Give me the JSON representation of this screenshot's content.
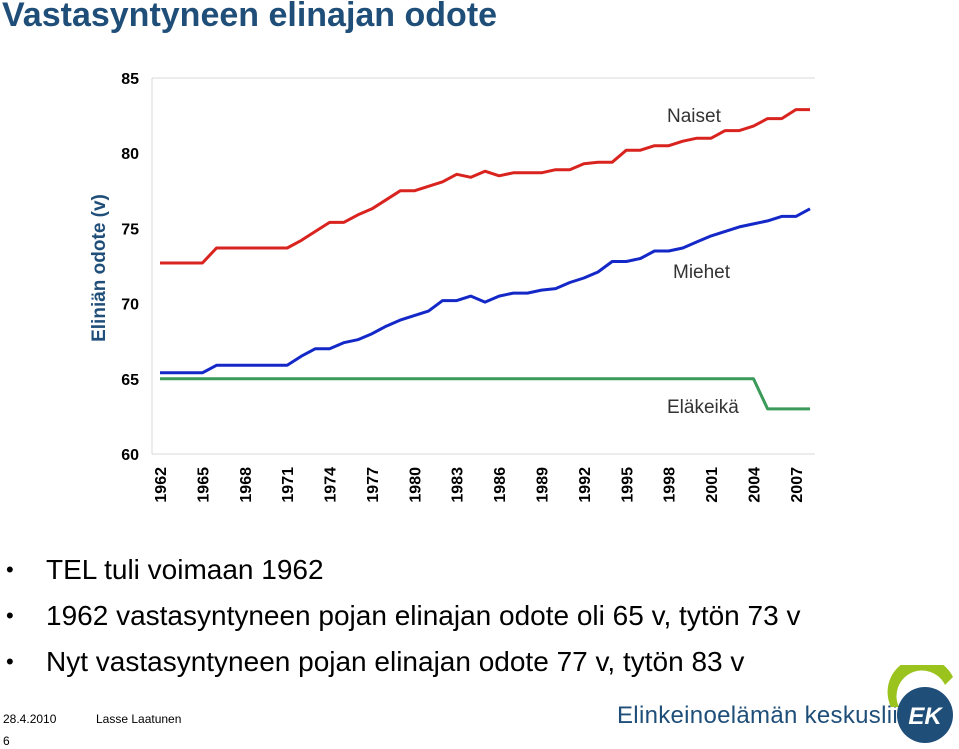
{
  "slide": {
    "title": "Vastasyntyneen elinajan odote",
    "bullets": [
      "TEL tuli voimaan 1962",
      "1962 vastasyntyneen pojan elinajan odote oli 65 v, tytön 73 v",
      "Nyt vastasyntyneen pojan elinajan odote 77 v, tytön 83 v"
    ],
    "bullet_symbol": "•"
  },
  "footer": {
    "date": "28.4.2010",
    "author": "Lasse Laatunen",
    "page_number": "6",
    "organization": "Elinkeinoelämän keskusliitto",
    "logo_text": "EK"
  },
  "colors": {
    "title": "#1f4e79",
    "women": "#d9231f",
    "men": "#1428c8",
    "retirement_age": "#3a9a5a",
    "logo_green": "#9bc31e",
    "logo_blue": "#1f4e79"
  },
  "chart_data": {
    "type": "line",
    "title": "",
    "xlabel": "",
    "ylabel": "Eliniän odote (v)",
    "ylim": [
      60,
      85
    ],
    "yticks": [
      60,
      65,
      70,
      75,
      80,
      85
    ],
    "xticks": [
      "1962",
      "1965",
      "1968",
      "1971",
      "1974",
      "1977",
      "1980",
      "1983",
      "1986",
      "1989",
      "1992",
      "1995",
      "1998",
      "2001",
      "2004",
      "2007"
    ],
    "grid": false,
    "x": [
      1962,
      1963,
      1964,
      1965,
      1966,
      1967,
      1968,
      1969,
      1970,
      1971,
      1972,
      1973,
      1974,
      1975,
      1976,
      1977,
      1978,
      1979,
      1980,
      1981,
      1982,
      1983,
      1984,
      1985,
      1986,
      1987,
      1988,
      1989,
      1990,
      1991,
      1992,
      1993,
      1994,
      1995,
      1996,
      1997,
      1998,
      1999,
      2000,
      2001,
      2002,
      2003,
      2004,
      2005,
      2006,
      2007,
      2008
    ],
    "series": [
      {
        "name": "Naiset",
        "values": [
          72.7,
          72.7,
          72.7,
          72.7,
          73.7,
          73.7,
          73.7,
          73.7,
          73.7,
          73.7,
          74.2,
          74.8,
          75.4,
          75.4,
          75.9,
          76.3,
          76.9,
          77.5,
          77.5,
          77.8,
          78.1,
          78.6,
          78.4,
          78.8,
          78.5,
          78.7,
          78.7,
          78.7,
          78.9,
          78.9,
          79.3,
          79.4,
          79.4,
          80.2,
          80.2,
          80.5,
          80.5,
          80.8,
          81.0,
          81.0,
          81.5,
          81.5,
          81.8,
          82.3,
          82.3,
          82.9,
          82.9
        ]
      },
      {
        "name": "Miehet",
        "values": [
          65.4,
          65.4,
          65.4,
          65.4,
          65.9,
          65.9,
          65.9,
          65.9,
          65.9,
          65.9,
          66.5,
          67.0,
          67.0,
          67.4,
          67.6,
          68.0,
          68.5,
          68.9,
          69.2,
          69.5,
          70.2,
          70.2,
          70.5,
          70.1,
          70.5,
          70.7,
          70.7,
          70.9,
          71.0,
          71.4,
          71.7,
          72.1,
          72.8,
          72.8,
          73.0,
          73.5,
          73.5,
          73.7,
          74.1,
          74.5,
          74.8,
          75.1,
          75.3,
          75.5,
          75.8,
          75.8,
          76.3
        ]
      },
      {
        "name": "Eläkeikä",
        "values": [
          65,
          65,
          65,
          65,
          65,
          65,
          65,
          65,
          65,
          65,
          65,
          65,
          65,
          65,
          65,
          65,
          65,
          65,
          65,
          65,
          65,
          65,
          65,
          65,
          65,
          65,
          65,
          65,
          65,
          65,
          65,
          65,
          65,
          65,
          65,
          65,
          65,
          65,
          65,
          65,
          65,
          65,
          65,
          63,
          63,
          63,
          63
        ]
      }
    ]
  }
}
